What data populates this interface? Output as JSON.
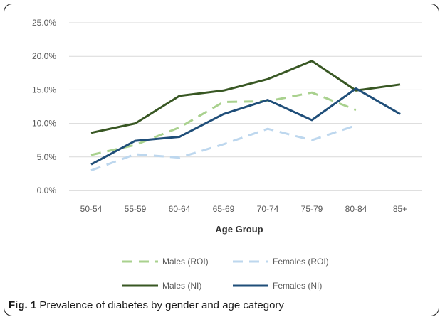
{
  "caption": {
    "label": "Fig. 1",
    "text": "Prevalence of diabetes by gender and age category"
  },
  "chart_data": {
    "type": "line",
    "xlabel": "Age Group",
    "ylabel": "",
    "ylim": [
      0,
      25
    ],
    "yticks": [
      "0.0%",
      "5.0%",
      "10.0%",
      "15.0%",
      "20.0%",
      "25.0%"
    ],
    "categories": [
      "50-54",
      "55-59",
      "60-64",
      "65-69",
      "70-74",
      "75-79",
      "80-84",
      "85+"
    ],
    "grid": true,
    "legend": "bottom",
    "series": [
      {
        "name": "Males (ROI)",
        "color": "#a9d18e",
        "dashed": true,
        "values": [
          5.3,
          6.8,
          9.4,
          13.2,
          13.3,
          14.6,
          12.0,
          null
        ]
      },
      {
        "name": "Females (ROI)",
        "color": "#bdd7ee",
        "dashed": true,
        "values": [
          3.0,
          5.4,
          4.9,
          6.9,
          9.2,
          7.5,
          9.7,
          null
        ]
      },
      {
        "name": "Males (NI)",
        "color": "#385723",
        "dashed": false,
        "values": [
          8.6,
          10.0,
          14.1,
          14.9,
          16.6,
          19.3,
          14.9,
          15.8
        ]
      },
      {
        "name": "Females (NI)",
        "color": "#1f4e79",
        "dashed": false,
        "values": [
          3.9,
          7.4,
          8.0,
          11.4,
          13.5,
          10.5,
          15.2,
          11.4
        ]
      }
    ]
  }
}
